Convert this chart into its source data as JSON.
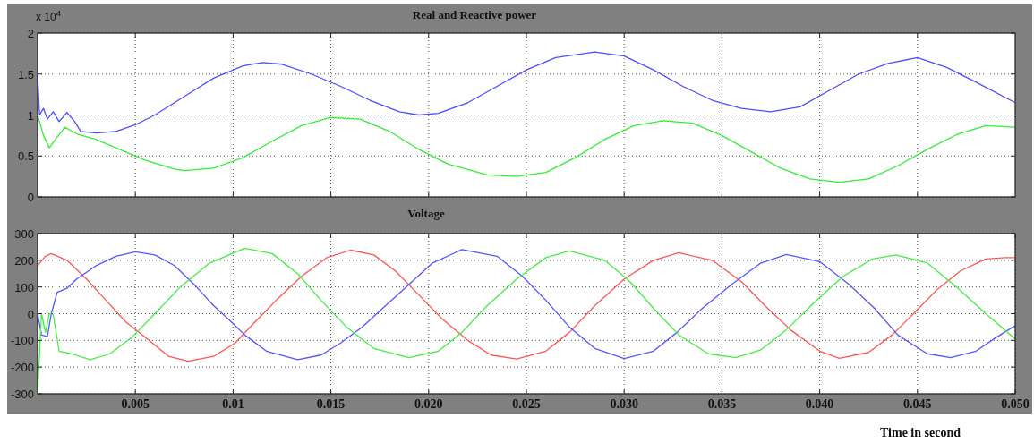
{
  "chart_data": [
    {
      "type": "line",
      "title": "Real and Reactive power",
      "annotations": [
        "x 10$^{4}$"
      ],
      "xlim": [
        0,
        0.05
      ],
      "xticks": [
        {
          "value": 0.005,
          "label": null
        },
        {
          "value": 0.01,
          "label": null
        },
        {
          "value": 0.015,
          "label": null
        },
        {
          "value": 0.02,
          "label": null
        },
        {
          "value": 0.025,
          "label": null
        },
        {
          "value": 0.03,
          "label": null
        },
        {
          "value": 0.035,
          "label": null
        },
        {
          "value": 0.04,
          "label": null
        },
        {
          "value": 0.045,
          "label": null
        }
      ],
      "ylim": [
        0,
        2
      ],
      "yticks": [
        0,
        0.5,
        1,
        1.5,
        2
      ],
      "grid": true,
      "tick_labels": "y",
      "series": [
        {
          "color": "#4d4dff",
          "x": [
            0,
            0.0001,
            0.0003,
            0.0005,
            0.0008,
            0.0011,
            0.0015,
            0.0019,
            0.0022,
            0.003,
            0.004,
            0.005,
            0.006,
            0.007,
            0.008,
            0.009,
            0.0105,
            0.0115,
            0.0125,
            0.014,
            0.0155,
            0.017,
            0.0185,
            0.0195,
            0.0205,
            0.022,
            0.0235,
            0.025,
            0.0265,
            0.0285,
            0.03,
            0.0315,
            0.033,
            0.0345,
            0.036,
            0.0375,
            0.039,
            0.0405,
            0.042,
            0.0435,
            0.045,
            0.0465,
            0.048,
            0.05
          ],
          "values": [
            1.5,
            1.0,
            1.08,
            0.95,
            1.04,
            0.92,
            1.03,
            0.92,
            0.8,
            0.78,
            0.8,
            0.88,
            1.0,
            1.15,
            1.3,
            1.45,
            1.6,
            1.64,
            1.62,
            1.5,
            1.35,
            1.18,
            1.04,
            1.0,
            1.02,
            1.15,
            1.35,
            1.55,
            1.7,
            1.77,
            1.72,
            1.55,
            1.35,
            1.18,
            1.08,
            1.04,
            1.1,
            1.3,
            1.5,
            1.63,
            1.7,
            1.58,
            1.4,
            1.15
          ]
        },
        {
          "color": "#33ee33",
          "x": [
            0,
            0.0003,
            0.0006,
            0.0009,
            0.0014,
            0.002,
            0.003,
            0.004,
            0.0055,
            0.007,
            0.0075,
            0.009,
            0.0105,
            0.012,
            0.0135,
            0.015,
            0.0165,
            0.018,
            0.0195,
            0.021,
            0.023,
            0.0245,
            0.026,
            0.0275,
            0.029,
            0.0305,
            0.032,
            0.0335,
            0.035,
            0.0365,
            0.038,
            0.0395,
            0.041,
            0.0425,
            0.044,
            0.0455,
            0.047,
            0.0485,
            0.05
          ],
          "values": [
            1.0,
            0.75,
            0.6,
            0.7,
            0.85,
            0.77,
            0.7,
            0.6,
            0.45,
            0.34,
            0.32,
            0.35,
            0.48,
            0.68,
            0.87,
            0.97,
            0.95,
            0.8,
            0.58,
            0.4,
            0.27,
            0.25,
            0.3,
            0.48,
            0.7,
            0.87,
            0.93,
            0.9,
            0.75,
            0.55,
            0.35,
            0.22,
            0.18,
            0.22,
            0.38,
            0.58,
            0.76,
            0.87,
            0.85
          ]
        }
      ]
    },
    {
      "type": "line",
      "title": "Voltage",
      "xlabel": "Time in second",
      "xlim": [
        0,
        0.05
      ],
      "xticks": [
        0.005,
        0.01,
        0.015,
        {
          "value": 0.02,
          "label": "0.020"
        },
        {
          "value": 0.025,
          "label": "0.025"
        },
        {
          "value": 0.03,
          "label": "0.030"
        },
        {
          "value": 0.035,
          "label": "0.035"
        },
        {
          "value": 0.04,
          "label": "0.040"
        },
        {
          "value": 0.045,
          "label": "0.045"
        },
        {
          "value": 0.05,
          "label": "0.050"
        }
      ],
      "ylim": [
        -300,
        300
      ],
      "yticks": [
        -300,
        -200,
        -100,
        0,
        100,
        200,
        300
      ],
      "grid": true,
      "series": [
        {
          "color": "#ff5555",
          "x": [
            0,
            0.0004,
            0.0007,
            0.0015,
            0.0025,
            0.0035,
            0.0045,
            0.0057,
            0.0067,
            0.0077,
            0.009,
            0.0101,
            0.011,
            0.0122,
            0.0135,
            0.0148,
            0.016,
            0.0172,
            0.0183,
            0.0195,
            0.0207,
            0.022,
            0.0232,
            0.0245,
            0.026,
            0.0272,
            0.0285,
            0.03,
            0.0315,
            0.0328,
            0.0345,
            0.036,
            0.0372,
            0.0385,
            0.04,
            0.041,
            0.0425,
            0.0437,
            0.0448,
            0.046,
            0.0472,
            0.0485,
            0.0495,
            0.05
          ],
          "values": [
            180,
            215,
            225,
            200,
            130,
            50,
            -30,
            -100,
            -160,
            -178,
            -160,
            -110,
            -40,
            50,
            140,
            210,
            238,
            220,
            160,
            70,
            -20,
            -100,
            -155,
            -170,
            -140,
            -70,
            30,
            130,
            200,
            228,
            200,
            120,
            30,
            -60,
            -140,
            -167,
            -145,
            -80,
            0,
            90,
            160,
            205,
            210,
            210
          ]
        },
        {
          "color": "#5555ff",
          "x": [
            0,
            0.0002,
            0.0005,
            0.0007,
            0.001,
            0.0015,
            0.002,
            0.003,
            0.004,
            0.005,
            0.006,
            0.007,
            0.008,
            0.009,
            0.0099,
            0.0106,
            0.0117,
            0.0133,
            0.0145,
            0.0155,
            0.0166,
            0.0178,
            0.019,
            0.0202,
            0.0217,
            0.0235,
            0.0248,
            0.026,
            0.0272,
            0.0285,
            0.03,
            0.0315,
            0.0327,
            0.034,
            0.0355,
            0.037,
            0.0383,
            0.04,
            0.0415,
            0.0428,
            0.044,
            0.0455,
            0.0467,
            0.048,
            0.049,
            0.05
          ],
          "values": [
            0,
            -80,
            -85,
            0,
            80,
            95,
            130,
            180,
            215,
            232,
            220,
            180,
            110,
            30,
            -30,
            -80,
            -140,
            -172,
            -155,
            -110,
            -50,
            30,
            110,
            190,
            240,
            215,
            140,
            50,
            -50,
            -130,
            -168,
            -140,
            -70,
            20,
            110,
            190,
            222,
            195,
            110,
            20,
            -80,
            -150,
            -165,
            -140,
            -90,
            -45
          ]
        },
        {
          "color": "#44ee44",
          "x": [
            0,
            0.0002,
            0.0004,
            0.0006,
            0.0008,
            0.0011,
            0.0017,
            0.0027,
            0.0037,
            0.0048,
            0.006,
            0.0073,
            0.0088,
            0.0106,
            0.012,
            0.0133,
            0.0145,
            0.0158,
            0.0172,
            0.019,
            0.0205,
            0.0217,
            0.023,
            0.0245,
            0.026,
            0.0272,
            0.029,
            0.0303,
            0.0315,
            0.0328,
            0.0343,
            0.0357,
            0.037,
            0.0383,
            0.0397,
            0.0412,
            0.0427,
            0.0439,
            0.0455,
            0.047,
            0.0485,
            0.05
          ],
          "values": [
            -300,
            0,
            -70,
            0,
            -5,
            -140,
            -150,
            -172,
            -150,
            -90,
            0,
            100,
            190,
            245,
            225,
            150,
            50,
            -50,
            -130,
            -165,
            -140,
            -70,
            30,
            130,
            210,
            235,
            200,
            120,
            20,
            -80,
            -150,
            -165,
            -135,
            -60,
            40,
            140,
            205,
            220,
            190,
            100,
            0,
            -95
          ]
        }
      ]
    }
  ]
}
